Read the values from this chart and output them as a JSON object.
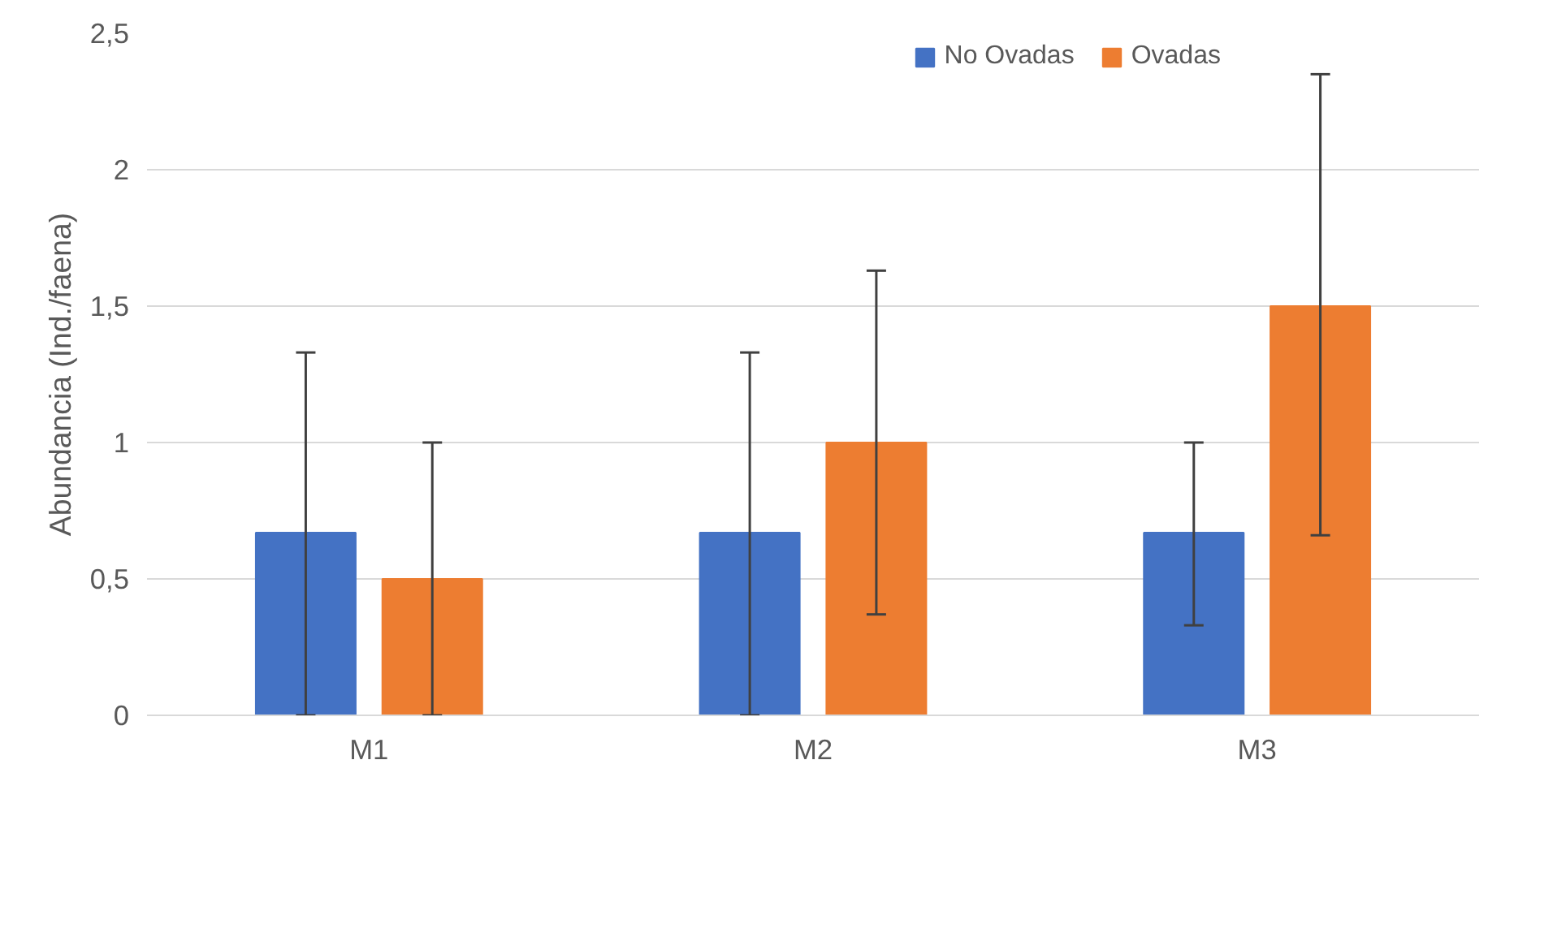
{
  "chart_data": {
    "type": "bar",
    "ylabel": "Abundancia (Ind./faena)",
    "categories": [
      "M1",
      "M2",
      "M3"
    ],
    "series": [
      {
        "name": "No Ovadas",
        "color": "#4472c4",
        "values": [
          0.67,
          0.67,
          0.67
        ],
        "errors": [
          [
            0,
            1.33
          ],
          [
            0,
            1.33
          ],
          [
            0.33,
            1.0
          ]
        ]
      },
      {
        "name": "Ovadas",
        "color": "#ed7d31",
        "values": [
          0.5,
          1.0,
          1.5
        ],
        "errors": [
          [
            0,
            1.0
          ],
          [
            0.37,
            1.63
          ],
          [
            0.66,
            2.35
          ]
        ]
      }
    ],
    "ylim": [
      0,
      2.5
    ],
    "yticks": [
      0,
      {
        "value": 0.5,
        "label": "0,5"
      },
      1,
      {
        "value": 1.5,
        "label": "1,5"
      },
      2,
      {
        "value": 2.5,
        "label": "2,5"
      }
    ],
    "grid": "y",
    "legend": "top right"
  }
}
